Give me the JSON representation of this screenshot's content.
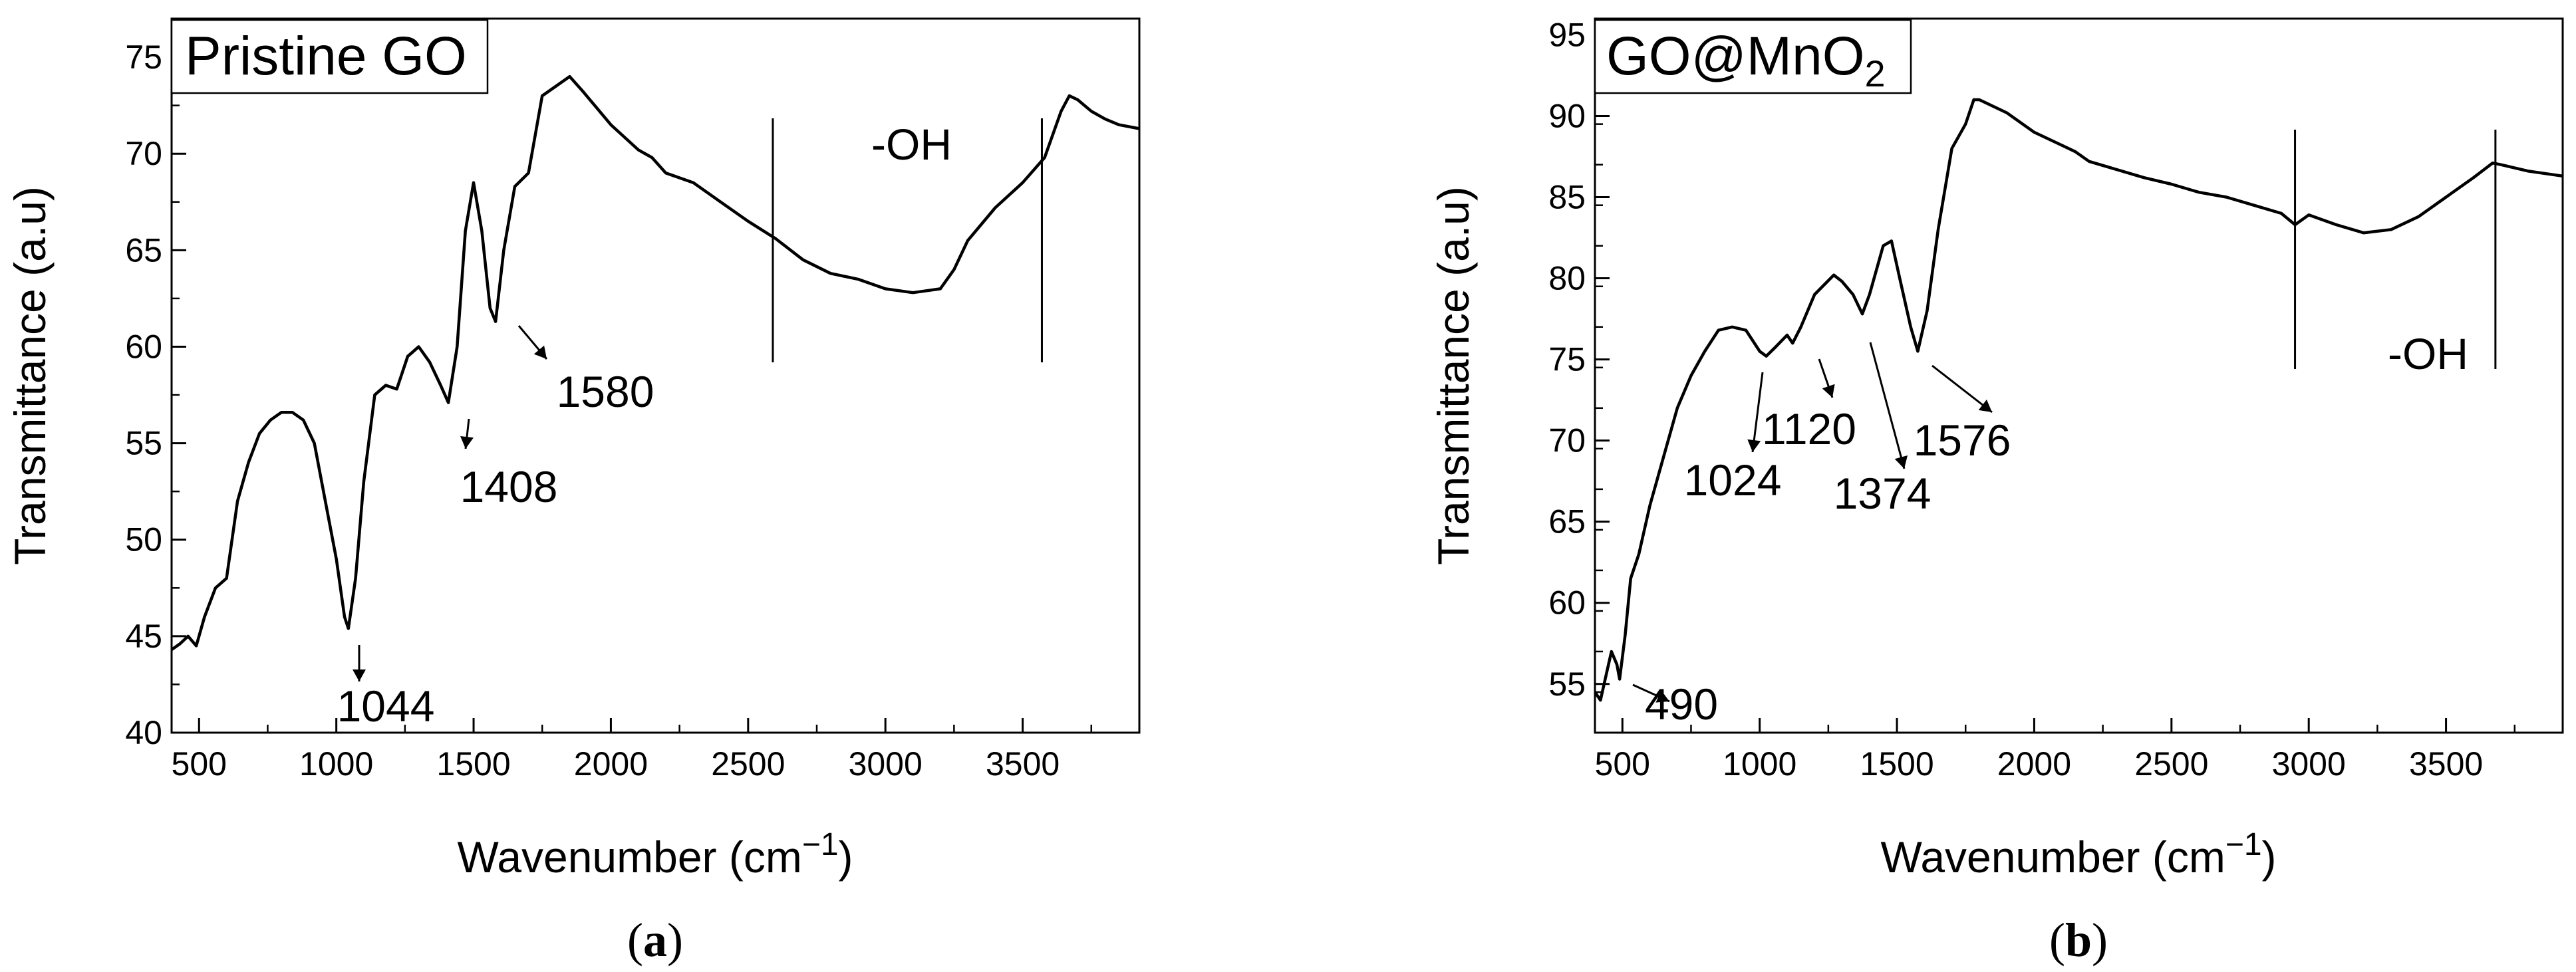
{
  "chart_data": [
    {
      "type": "line",
      "panel_title": "Pristine GO",
      "caption_letter": "a",
      "xlabel": "Wavenumber (cm",
      "xlabel_sup": "−1",
      "xlabel_end": ")",
      "ylabel": "Transmittance (a.u)",
      "xlim": [
        400,
        3925
      ],
      "ylim": [
        40,
        77
      ],
      "xticks": [
        500,
        1000,
        1500,
        2000,
        2500,
        3000,
        3500
      ],
      "yticks": [
        40,
        45,
        50,
        55,
        60,
        65,
        70,
        75
      ],
      "series": [
        {
          "name": "Pristine GO",
          "x": [
            400,
            430,
            460,
            490,
            520,
            560,
            600,
            640,
            680,
            720,
            760,
            800,
            840,
            880,
            920,
            960,
            1000,
            1030,
            1044,
            1070,
            1100,
            1140,
            1180,
            1220,
            1260,
            1300,
            1340,
            1380,
            1408,
            1440,
            1470,
            1500,
            1530,
            1560,
            1580,
            1610,
            1650,
            1700,
            1750,
            1800,
            1850,
            1900,
            2000,
            2100,
            2150,
            2200,
            2300,
            2400,
            2500,
            2600,
            2700,
            2800,
            2900,
            3000,
            3100,
            3200,
            3250,
            3300,
            3400,
            3500,
            3580,
            3640,
            3670,
            3700,
            3750,
            3800,
            3850,
            3925
          ],
          "y": [
            44.3,
            44.6,
            45.0,
            44.5,
            46.0,
            47.5,
            48.0,
            52.0,
            54.0,
            55.5,
            56.2,
            56.6,
            56.6,
            56.2,
            55.0,
            52.0,
            49.0,
            46.0,
            45.4,
            48.0,
            53.0,
            57.5,
            58.0,
            57.8,
            59.5,
            60.0,
            59.2,
            58.0,
            57.1,
            60.0,
            66.0,
            68.5,
            66.0,
            62.0,
            61.3,
            65.0,
            68.3,
            69.0,
            73.0,
            73.5,
            74.0,
            73.2,
            71.5,
            70.2,
            69.8,
            69.0,
            68.5,
            67.5,
            66.5,
            65.6,
            64.5,
            63.8,
            63.5,
            63.0,
            62.8,
            63.0,
            64.0,
            65.5,
            67.2,
            68.5,
            69.8,
            72.2,
            73.0,
            72.8,
            72.2,
            71.8,
            71.5,
            71.3
          ]
        }
      ],
      "annotations": [
        {
          "label": "1044",
          "x": 1044,
          "y": 45.4
        },
        {
          "label": "1408",
          "x": 1408,
          "y": 57.1
        },
        {
          "label": "1580",
          "x": 1580,
          "y": 61.3
        }
      ],
      "region_label": "-OH",
      "region_lines_x": [
        2590,
        3570
      ]
    },
    {
      "type": "line",
      "panel_title": "GO@MnO",
      "panel_title_sub": "2",
      "caption_letter": "b",
      "xlabel": "Wavenumber (cm",
      "xlabel_sup": "−1",
      "xlabel_end": ")",
      "ylabel": "Transmittance (a.u)",
      "xlim": [
        400,
        3925
      ],
      "ylim": [
        52,
        96
      ],
      "xticks": [
        500,
        1000,
        1500,
        2000,
        2500,
        3000,
        3500
      ],
      "yticks": [
        55,
        60,
        65,
        70,
        75,
        80,
        85,
        90,
        95
      ],
      "series": [
        {
          "name": "GO@MnO2",
          "x": [
            400,
            420,
            440,
            460,
            480,
            490,
            510,
            530,
            560,
            600,
            650,
            700,
            750,
            800,
            850,
            900,
            950,
            1000,
            1024,
            1060,
            1100,
            1120,
            1150,
            1200,
            1270,
            1300,
            1340,
            1374,
            1400,
            1450,
            1480,
            1510,
            1550,
            1576,
            1610,
            1650,
            1700,
            1750,
            1780,
            1800,
            1900,
            2000,
            2100,
            2150,
            2200,
            2300,
            2400,
            2500,
            2600,
            2700,
            2800,
            2900,
            2950,
            3000,
            3100,
            3200,
            3300,
            3400,
            3500,
            3600,
            3670,
            3700,
            3800,
            3925
          ],
          "y": [
            54.5,
            54.0,
            55.5,
            57.0,
            56.2,
            55.3,
            58.0,
            61.5,
            63.0,
            66.0,
            69.0,
            72.0,
            74.0,
            75.5,
            76.8,
            77.0,
            76.8,
            75.5,
            75.2,
            75.8,
            76.5,
            76.0,
            77.0,
            79.0,
            80.2,
            79.8,
            79.0,
            77.8,
            79.0,
            82.0,
            82.3,
            80.0,
            77.0,
            75.5,
            78.0,
            83.0,
            88.0,
            89.5,
            91.0,
            91.0,
            90.2,
            89.0,
            88.2,
            87.8,
            87.2,
            86.7,
            86.2,
            85.8,
            85.3,
            85.0,
            84.5,
            84.0,
            83.3,
            83.9,
            83.3,
            82.8,
            83.0,
            83.8,
            85.0,
            86.2,
            87.1,
            87.0,
            86.6,
            86.3
          ]
        }
      ],
      "annotations": [
        {
          "label": "490",
          "x": 490,
          "y": 55.3
        },
        {
          "label": "1024",
          "x": 1024,
          "y": 75.2
        },
        {
          "label": "1120",
          "x": 1120,
          "y": 76.0
        },
        {
          "label": "1374",
          "x": 1374,
          "y": 77.8
        },
        {
          "label": "1576",
          "x": 1576,
          "y": 75.5
        }
      ],
      "region_label": "-OH",
      "region_lines_x": [
        2950,
        3680
      ]
    }
  ]
}
